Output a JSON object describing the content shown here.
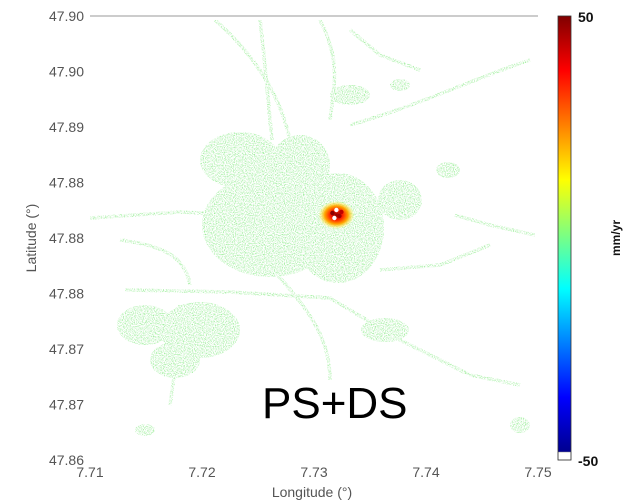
{
  "chart_data": {
    "type": "scatter",
    "title": "",
    "xlabel": "Longitude (°)",
    "ylabel": "Latitude (°)",
    "xlim": [
      7.71,
      7.75
    ],
    "x_ticks": [
      "7.71",
      "7.72",
      "7.73",
      "7.74",
      "7.75"
    ],
    "y_ticks": [
      "47.90",
      "47.90",
      "47.89",
      "47.88",
      "47.88",
      "47.88",
      "47.87",
      "47.87",
      "47.86"
    ],
    "annotation": "PS+DS",
    "colorbar": {
      "label": "mm/yr",
      "min": -50,
      "max": 50,
      "min_label": "-50",
      "max_label": "50",
      "colormap": "jet"
    },
    "dominant_color": "#7de87a",
    "hotspot": {
      "lon": 7.732,
      "lat": 47.88,
      "value_range": [
        20,
        50
      ]
    }
  }
}
